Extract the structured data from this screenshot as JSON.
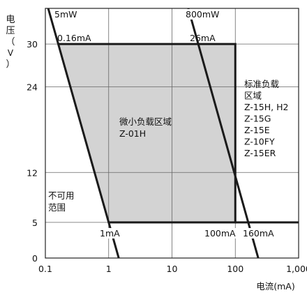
{
  "chart_data": {
    "type": "line",
    "x_scale": "log",
    "xlim": [
      0.1,
      1000
    ],
    "ylim": [
      0,
      35
    ],
    "grid": true,
    "xlabel": "电流(mA)",
    "ylabel": [
      "电",
      "压",
      "（",
      "V",
      "）"
    ],
    "x_ticks": [
      {
        "value": 0.1,
        "label": "0.1"
      },
      {
        "value": 1,
        "label": "1"
      },
      {
        "value": 10,
        "label": "10"
      },
      {
        "value": 100,
        "label": "100"
      },
      {
        "value": 1000,
        "label": "1,000"
      }
    ],
    "y_ticks": [
      {
        "value": 0,
        "label": "0"
      },
      {
        "value": 5,
        "label": "5"
      },
      {
        "value": 12,
        "label": "12"
      },
      {
        "value": 24,
        "label": "24"
      },
      {
        "value": 30,
        "label": "30"
      }
    ],
    "series": [
      {
        "name": "5mW",
        "style": "limit",
        "points": [
          [
            0.16,
            30
          ],
          [
            1,
            5
          ]
        ]
      },
      {
        "name": "800mW",
        "style": "limit",
        "points": [
          [
            26,
            30
          ],
          [
            160,
            5
          ]
        ]
      }
    ],
    "regions": [
      {
        "label": "微小负载区域\nZ-01H",
        "fill": "#d3d3d3",
        "polygon": [
          [
            0.16,
            30
          ],
          [
            100,
            30
          ],
          [
            100,
            5
          ],
          [
            1,
            5
          ]
        ]
      }
    ],
    "boundary_lines": [
      {
        "points": [
          [
            0.16,
            30
          ],
          [
            100,
            30
          ],
          [
            100,
            5
          ],
          [
            1,
            5
          ]
        ]
      },
      {
        "points": [
          [
            100,
            5
          ],
          [
            1000,
            5
          ]
        ]
      }
    ],
    "annotations": [
      {
        "id": "5mw",
        "text": "5mW"
      },
      {
        "id": "016ma",
        "text": "0.16mA"
      },
      {
        "id": "800mw",
        "text": "800mW"
      },
      {
        "id": "26ma",
        "text": "26mA"
      },
      {
        "id": "1ma",
        "text": "1mA"
      },
      {
        "id": "100ma",
        "text": "100mA"
      },
      {
        "id": "160ma",
        "text": "160mA"
      },
      {
        "id": "standard",
        "lines": [
          "标准负载",
          "区域",
          "Z-15H, H2",
          "Z-15G",
          "Z-15E",
          "Z-10FY",
          "Z-15ER"
        ]
      },
      {
        "id": "micro",
        "lines": [
          "微小负载区域",
          "Z-01H"
        ]
      },
      {
        "id": "unusable",
        "lines": [
          "不可用",
          "范围"
        ]
      }
    ],
    "colors": {
      "region_fill": "#d3d3d3",
      "line": "#1a1a1a",
      "grid": "#666666"
    }
  }
}
